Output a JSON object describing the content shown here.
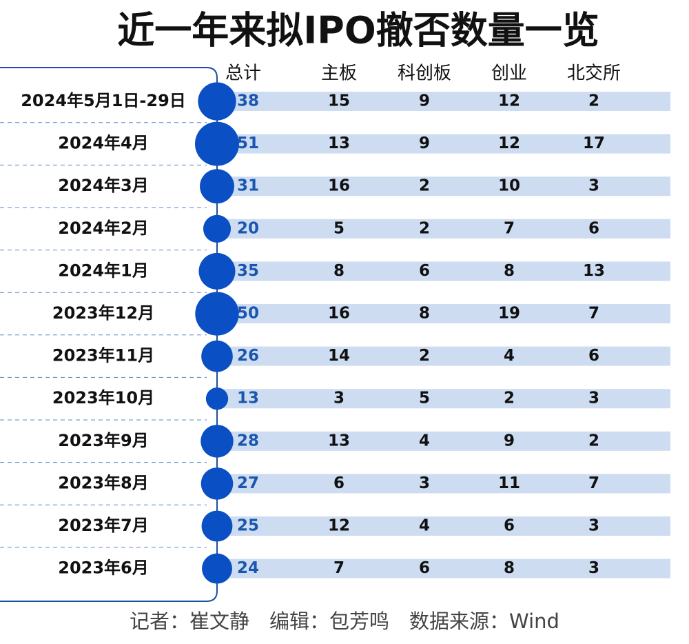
{
  "title": "近一年来拟IPO撤否数量一览",
  "columns": [
    "总计",
    "主板",
    "科创板",
    "创业",
    "北交所"
  ],
  "rows": [
    {
      "label": "2024年5月1日-29日",
      "values": [
        38,
        15,
        9,
        12,
        2
      ]
    },
    {
      "label": "2024年4月",
      "values": [
        51,
        13,
        9,
        12,
        17
      ]
    },
    {
      "label": "2024年3月",
      "values": [
        31,
        16,
        2,
        10,
        3
      ]
    },
    {
      "label": "2024年2月",
      "values": [
        20,
        5,
        2,
        7,
        6
      ]
    },
    {
      "label": "2024年1月",
      "values": [
        35,
        8,
        6,
        8,
        13
      ]
    },
    {
      "label": "2023年12月",
      "values": [
        50,
        16,
        8,
        19,
        7
      ]
    },
    {
      "label": "2023年11月",
      "values": [
        26,
        14,
        2,
        4,
        6
      ]
    },
    {
      "label": "2023年10月",
      "values": [
        13,
        3,
        5,
        2,
        3
      ]
    },
    {
      "label": "2023年9月",
      "values": [
        28,
        13,
        4,
        9,
        2
      ]
    },
    {
      "label": "2023年8月",
      "values": [
        27,
        6,
        3,
        11,
        7
      ]
    },
    {
      "label": "2023年7月",
      "values": [
        25,
        12,
        4,
        6,
        3
      ]
    },
    {
      "label": "2023年6月",
      "values": [
        24,
        7,
        6,
        8,
        3
      ]
    }
  ],
  "footer": "记者：崔文静　编辑：包芳鸣　数据来源：Wind"
}
